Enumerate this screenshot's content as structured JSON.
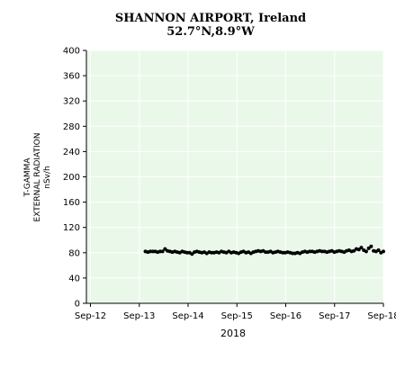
{
  "chart_data": {
    "type": "scatter",
    "title": "SHANNON AIRPORT, Ireland",
    "subtitle": "52.7°N,8.9°W",
    "ylabel_lines": [
      "T-GAMMA",
      "EXTERNAL RADIATION",
      "nSv/h"
    ],
    "xlabel": "2018",
    "ylim": [
      0,
      400
    ],
    "y_ticks": [
      0,
      40,
      80,
      120,
      160,
      200,
      240,
      280,
      320,
      360,
      400
    ],
    "x_ticks": [
      "Sep-12",
      "Sep-13",
      "Sep-14",
      "Sep-15",
      "Sep-16",
      "Sep-17",
      "Sep-18"
    ],
    "x_range_months": [
      "Aug-12",
      "Sep-18"
    ],
    "grid": true,
    "plot_background": "#eaf8ea",
    "grid_color": "#ffffff",
    "marker_color": "#000000",
    "series": [
      {
        "values": [
          82,
          81,
          82,
          82,
          82,
          81,
          82,
          82,
          86,
          83,
          82,
          81,
          82,
          81,
          80,
          82,
          81,
          80,
          80,
          78,
          81,
          82,
          81,
          80,
          81,
          79,
          81,
          80,
          80,
          81,
          80,
          82,
          81,
          80,
          82,
          80,
          81,
          80,
          79,
          81,
          82,
          80,
          81,
          79,
          81,
          82,
          83,
          82,
          83,
          81,
          81,
          82,
          80,
          81,
          82,
          81,
          80,
          80,
          81,
          80,
          79,
          79,
          80,
          79,
          81,
          82,
          81,
          82,
          82,
          81,
          82,
          83,
          82,
          82,
          81,
          82,
          83,
          81,
          82,
          83,
          82,
          81,
          83,
          84,
          82,
          83,
          86,
          85,
          88,
          84,
          82,
          87,
          90,
          83,
          82,
          84,
          80,
          82
        ],
        "x_start": "Oct-13",
        "x_end": "Sep-18"
      }
    ]
  }
}
